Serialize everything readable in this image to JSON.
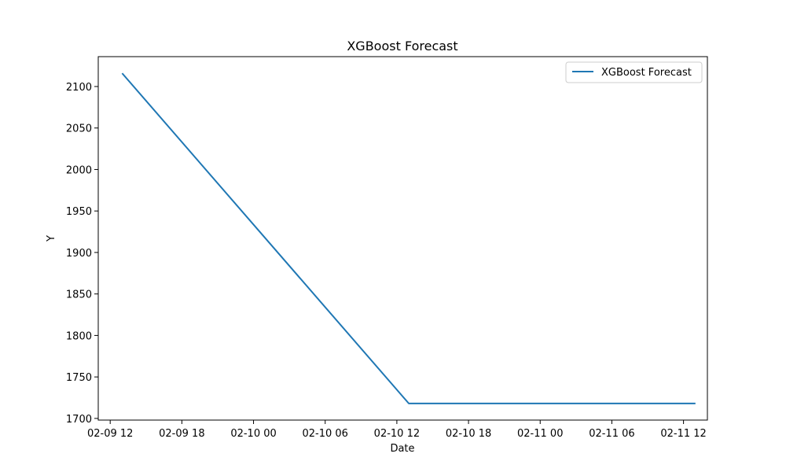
{
  "chart_data": {
    "type": "line",
    "title": "XGBoost Forecast",
    "xlabel": "Date",
    "ylabel": "Y",
    "x_tick_labels": [
      "02-09 12",
      "02-09 18",
      "02-10 00",
      "02-10 06",
      "02-10 12",
      "02-10 18",
      "02-11 00",
      "02-11 06",
      "02-11 12"
    ],
    "y_ticks": [
      1700,
      1750,
      1800,
      1850,
      1900,
      1950,
      2000,
      2050,
      2100
    ],
    "ylim": [
      1698,
      2136
    ],
    "xlim": [
      "2024-02-09 11:00",
      "2024-02-11 14:00"
    ],
    "grid": false,
    "legend_position": "upper right",
    "colors": {
      "series": "#1f77b4"
    },
    "series": [
      {
        "name": "XGBoost Forecast",
        "points": [
          {
            "x": "2024-02-09 13:00",
            "y": 2116
          },
          {
            "x": "2024-02-10 13:00",
            "y": 1718
          },
          {
            "x": "2024-02-11 13:00",
            "y": 1718
          }
        ]
      }
    ]
  }
}
